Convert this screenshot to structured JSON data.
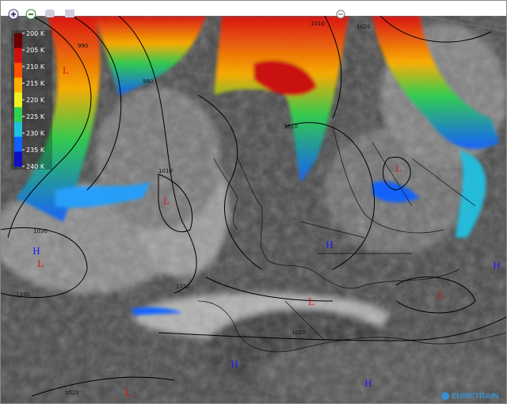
{
  "legend": {
    "ticks": [
      {
        "value": 200,
        "label": "200 K"
      },
      {
        "value": 205,
        "label": "205 K"
      },
      {
        "value": 210,
        "label": "210 K"
      },
      {
        "value": 215,
        "label": "215 K"
      },
      {
        "value": 220,
        "label": "220 K"
      },
      {
        "value": 225,
        "label": "225 K"
      },
      {
        "value": 230,
        "label": "230 K"
      },
      {
        "value": 235,
        "label": "235 K"
      },
      {
        "value": 240,
        "label": "240 K"
      }
    ],
    "colors": [
      "#6a0000",
      "#d01010",
      "#ff5000",
      "#ffb000",
      "#f0f020",
      "#30d050",
      "#20c0e0",
      "#1060ff",
      "#1010c0"
    ]
  },
  "isobar_labels": [
    "990",
    "980",
    "1010",
    "1020",
    "1030",
    "1030",
    "1010",
    "1020",
    "1010",
    "1020",
    "1020"
  ],
  "pressure_centers": [
    {
      "label": "H",
      "color": "#1a1aff"
    },
    {
      "label": "L",
      "color": "#e01010"
    },
    {
      "label": "H",
      "color": "#1a1aff"
    },
    {
      "label": "L",
      "color": "#e01010"
    },
    {
      "label": "L",
      "color": "#e01010"
    },
    {
      "label": "H",
      "color": "#1a1aff"
    },
    {
      "label": "H",
      "color": "#1a1aff"
    },
    {
      "label": "H",
      "color": "#1a1aff"
    },
    {
      "label": "L",
      "color": "#e01010"
    },
    {
      "label": "L",
      "color": "#e01010"
    },
    {
      "label": "L",
      "color": "#e01010"
    },
    {
      "label": "L",
      "color": "#e01010"
    }
  ],
  "logo": "EUMETRAIN"
}
